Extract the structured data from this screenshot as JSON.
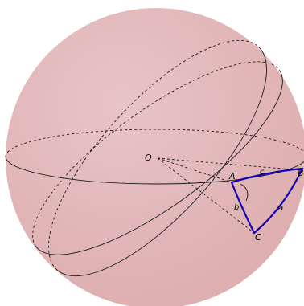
{
  "diagram": {
    "colors": {
      "sphere_fill": "#ddadaf",
      "sphere_highlight": "#e9c4c5",
      "line": "#1a1a1a",
      "triangle": "#1400b4"
    },
    "points": {
      "center": "O",
      "vertex_a": "A",
      "vertex_b": "B",
      "vertex_c": "C"
    },
    "sides": {
      "side_a": "a",
      "side_b": "b",
      "side_c": "c"
    }
  }
}
